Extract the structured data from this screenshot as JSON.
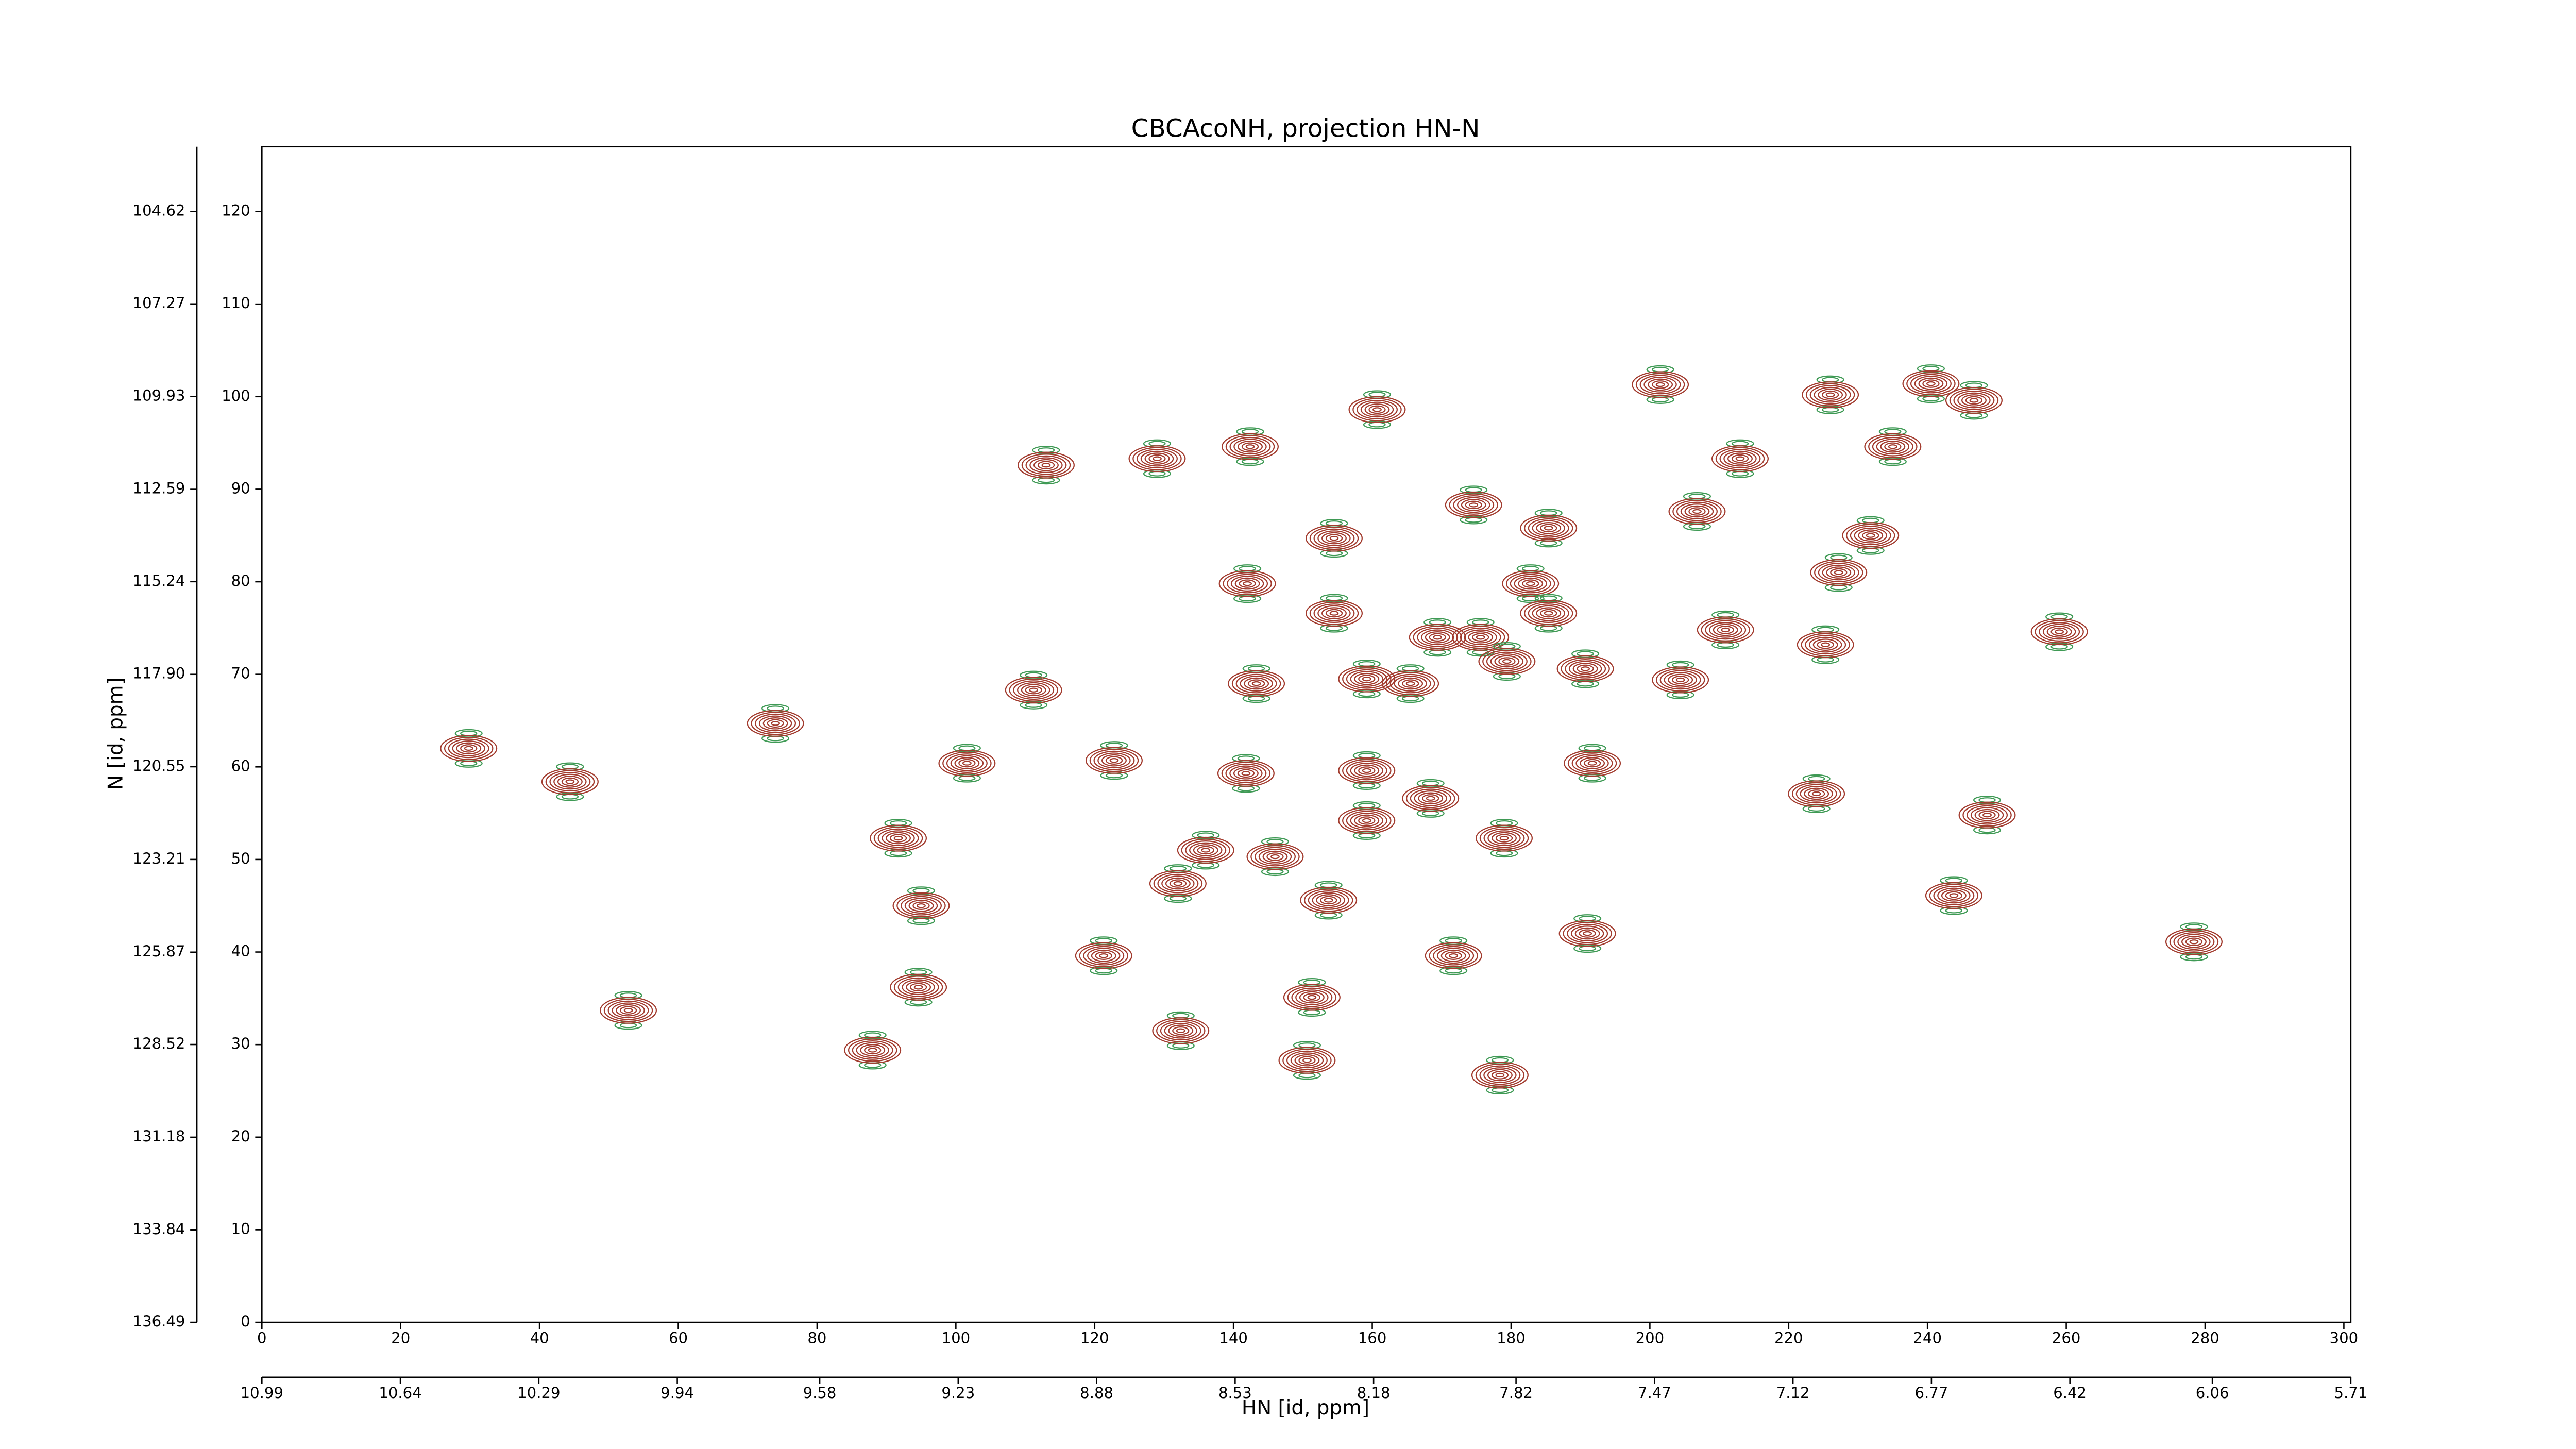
{
  "chart_data": {
    "type": "contour",
    "title": "CBCAcoNH, projection HN-N",
    "x_label": "HN [id, ppm]",
    "y_label": "N [id, ppm]",
    "xlim": [
      0,
      301
    ],
    "xticks": [
      0,
      20,
      40,
      60,
      80,
      100,
      120,
      140,
      160,
      180,
      200,
      220,
      240,
      260,
      280,
      300
    ],
    "ylim": [
      0,
      127
    ],
    "yticks": [
      0,
      10,
      20,
      30,
      40,
      50,
      60,
      70,
      80,
      90,
      100,
      110,
      120
    ],
    "x2lim": [
      10.99,
      5.71
    ],
    "x2ticks": [
      10.99,
      10.64,
      10.29,
      9.94,
      9.58,
      9.23,
      8.88,
      8.53,
      8.18,
      7.82,
      7.47,
      7.12,
      6.77,
      6.42,
      6.06,
      5.71
    ],
    "y2lim": [
      136.49,
      102.76
    ],
    "y2ticks": [
      104.62,
      107.27,
      109.93,
      112.59,
      115.24,
      {
        "value": 117.9,
        "label": "117.90"
      },
      120.55,
      123.21,
      125.87,
      128.52,
      131.18,
      133.84,
      136.49
    ],
    "positive_color": "#a23b2e",
    "negative_color": "#3f9a55",
    "peaks": {
      "x": [
        29.8,
        44.4,
        74,
        52.8,
        88,
        94.6,
        95,
        91.7,
        101.6,
        111.2,
        113,
        129,
        122.8,
        121.3,
        132,
        132.4,
        142,
        142.4,
        143.3,
        141.8,
        136,
        146,
        150.6,
        154.5,
        154.5,
        160.7,
        159.2,
        159.2,
        159.2,
        165.5,
        169.4,
        174.6,
        171.7,
        168.4,
        175.6,
        179,
        179.4,
        178.4,
        182.8,
        185.4,
        190.7,
        191,
        191.7,
        204.4,
        210.9,
        213,
        206.8,
        225.3,
        231.8,
        235,
        226,
        240.5,
        246.7,
        201.5,
        259,
        278.4,
        243.8,
        224,
        248.6,
        151.3,
        153.7,
        185.4,
        227.2
      ],
      "y": [
        62,
        58.4,
        64.7,
        33.7,
        29.4,
        36.2,
        45,
        52.3,
        60.4,
        68.3,
        92.6,
        93.3,
        60.7,
        39.6,
        47.4,
        31.5,
        79.8,
        94.6,
        69,
        59.3,
        51,
        50.3,
        28.3,
        76.6,
        84.7,
        98.6,
        69.5,
        59.6,
        54.2,
        69,
        74,
        88.3,
        39.6,
        56.6,
        74,
        52.3,
        71.4,
        26.7,
        79.8,
        76.6,
        70.6,
        42,
        60.4,
        69.4,
        74.8,
        93.3,
        87.6,
        73.2,
        85,
        94.6,
        100.2,
        101.4,
        99.6,
        101.3,
        74.6,
        41.1,
        46.1,
        57.1,
        54.8,
        35.1,
        45.6,
        85.8,
        81
      ]
    }
  }
}
